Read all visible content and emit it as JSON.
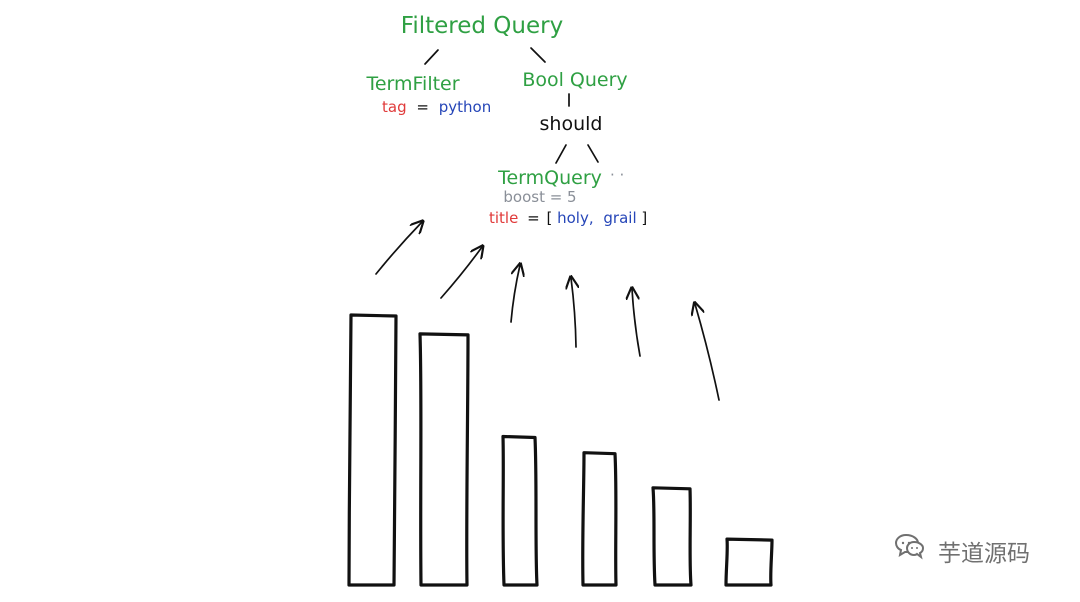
{
  "colors": {
    "green": "#2fa043",
    "red": "#e03a3a",
    "blue": "#2646b8",
    "gray": "#8a8f98",
    "black": "#111111",
    "watermark": "#707070"
  },
  "tree": {
    "root": "Filtered Query",
    "term_filter": {
      "label": "TermFilter",
      "field": "tag",
      "equals": "=",
      "value": "python"
    },
    "bool_query": {
      "label": "Bool Query",
      "clause": "should"
    },
    "term_query": {
      "label": "TermQuery",
      "dots": "· ·",
      "boost": "boost = 5",
      "field": "title",
      "equals": "=",
      "open_bracket": "[",
      "value1": "holy,",
      "value2": "grail",
      "close_bracket": "]"
    }
  },
  "chart_data": {
    "type": "bar",
    "values": [
      100,
      93,
      55,
      49,
      36,
      17
    ],
    "arrow_count": 6
  },
  "watermark": {
    "icon": "wechat-icon",
    "text": "芋道源码"
  }
}
